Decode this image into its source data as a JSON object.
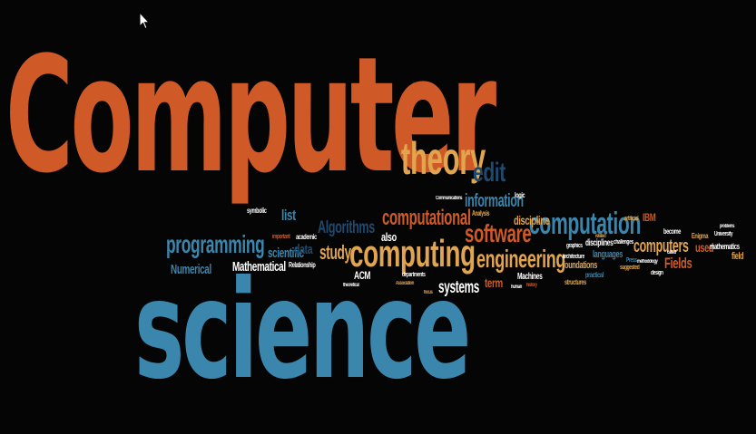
{
  "colors": {
    "background": "#050505",
    "orange": "#cf5a27",
    "blue": "#3b86ad",
    "tan": "#e2a54f",
    "navy": "#1f4a6e",
    "white": "#ffffff"
  },
  "cursor_icon": "mouse-pointer-icon",
  "words": [
    "Computer",
    "science",
    "theory",
    "edit",
    "computing",
    "computation",
    "software",
    "engineering",
    "computational",
    "programming",
    "information",
    "systems",
    "computers",
    "Algorithms",
    "study",
    "Mathematical",
    "scientific",
    "Numerical",
    "list",
    "data",
    "discipline",
    "Fields",
    "also",
    "term",
    "used",
    "field",
    "languages",
    "foundations",
    "ACM",
    "IBM",
    "Machines",
    "mathematics",
    "disciplines",
    "Analysis",
    "logic",
    "academic",
    "symbolic",
    "Relationship",
    "Enigma",
    "become",
    "University",
    "Press",
    "artificial",
    "architecture",
    "challenges",
    "departments",
    "suggested",
    "graphics",
    "Communications",
    "practical",
    "structures",
    "theoretical",
    "focus",
    "history",
    "design",
    "human",
    "methodology",
    "problems",
    "called",
    "related",
    "important",
    "Association"
  ]
}
